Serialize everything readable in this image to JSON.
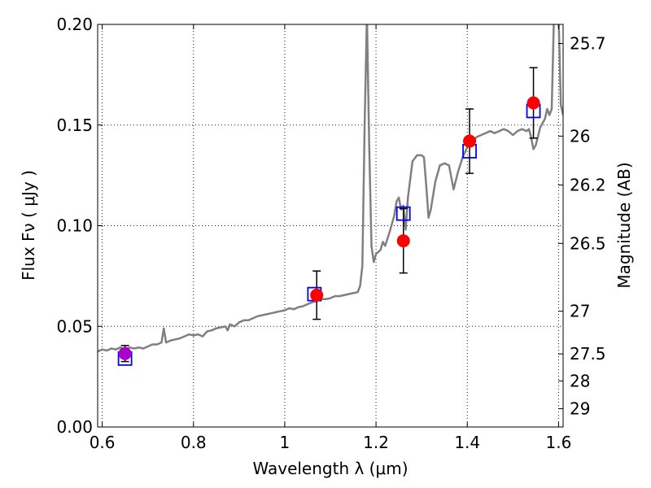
{
  "chart_data": {
    "type": "scatter",
    "xlabel": "Wavelength  λ (μm)",
    "ylabel": "Flux  Fν  ( μJy )",
    "ylabel_right": "Magnitude (AB)",
    "xlim": [
      0.59,
      1.61
    ],
    "ylim": [
      0.0,
      0.2
    ],
    "grid": true,
    "x_ticks": [
      {
        "value": 0.6,
        "label": "0.6"
      },
      {
        "value": 0.8,
        "label": "0.8"
      },
      {
        "value": 1.0,
        "label": "1"
      },
      {
        "value": 1.2,
        "label": "1.2"
      },
      {
        "value": 1.4,
        "label": "1.4"
      },
      {
        "value": 1.6,
        "label": "1.6"
      }
    ],
    "y_ticks": [
      {
        "value": 0.0,
        "label": "0.00"
      },
      {
        "value": 0.05,
        "label": "0.05"
      },
      {
        "value": 0.1,
        "label": "0.10"
      },
      {
        "value": 0.15,
        "label": "0.15"
      },
      {
        "value": 0.2,
        "label": "0.20"
      }
    ],
    "right_ticks": [
      {
        "label": "25.7",
        "flux": 0.1905
      },
      {
        "label": "26",
        "flux": 0.1445
      },
      {
        "label": "26.2",
        "flux": 0.1202
      },
      {
        "label": "26.5",
        "flux": 0.0912
      },
      {
        "label": "27",
        "flux": 0.0575
      },
      {
        "label": "27.5",
        "flux": 0.0363
      },
      {
        "label": "28",
        "flux": 0.0229
      },
      {
        "label": "29",
        "flux": 0.0091
      }
    ],
    "model_spectrum": {
      "color": "#808080",
      "points": [
        [
          0.59,
          0.0375
        ],
        [
          0.6,
          0.0385
        ],
        [
          0.61,
          0.038
        ],
        [
          0.62,
          0.039
        ],
        [
          0.63,
          0.0385
        ],
        [
          0.64,
          0.0395
        ],
        [
          0.65,
          0.0385
        ],
        [
          0.66,
          0.0395
        ],
        [
          0.67,
          0.039
        ],
        [
          0.68,
          0.0395
        ],
        [
          0.69,
          0.039
        ],
        [
          0.7,
          0.04
        ],
        [
          0.71,
          0.041
        ],
        [
          0.72,
          0.041
        ],
        [
          0.73,
          0.042
        ],
        [
          0.735,
          0.049
        ],
        [
          0.74,
          0.042
        ],
        [
          0.75,
          0.043
        ],
        [
          0.76,
          0.0435
        ],
        [
          0.77,
          0.044
        ],
        [
          0.78,
          0.045
        ],
        [
          0.79,
          0.046
        ],
        [
          0.8,
          0.0455
        ],
        [
          0.81,
          0.046
        ],
        [
          0.82,
          0.045
        ],
        [
          0.83,
          0.0475
        ],
        [
          0.84,
          0.048
        ],
        [
          0.85,
          0.049
        ],
        [
          0.86,
          0.0495
        ],
        [
          0.87,
          0.05
        ],
        [
          0.875,
          0.048
        ],
        [
          0.88,
          0.051
        ],
        [
          0.89,
          0.05
        ],
        [
          0.9,
          0.052
        ],
        [
          0.91,
          0.053
        ],
        [
          0.92,
          0.053
        ],
        [
          0.93,
          0.054
        ],
        [
          0.94,
          0.055
        ],
        [
          0.95,
          0.0555
        ],
        [
          0.96,
          0.056
        ],
        [
          0.97,
          0.0565
        ],
        [
          0.98,
          0.057
        ],
        [
          0.99,
          0.0575
        ],
        [
          1.0,
          0.058
        ],
        [
          1.01,
          0.059
        ],
        [
          1.02,
          0.0585
        ],
        [
          1.03,
          0.0595
        ],
        [
          1.04,
          0.06
        ],
        [
          1.05,
          0.061
        ],
        [
          1.06,
          0.062
        ],
        [
          1.07,
          0.0625
        ],
        [
          1.08,
          0.0635
        ],
        [
          1.09,
          0.0635
        ],
        [
          1.1,
          0.064
        ],
        [
          1.11,
          0.065
        ],
        [
          1.12,
          0.065
        ],
        [
          1.13,
          0.0655
        ],
        [
          1.14,
          0.066
        ],
        [
          1.15,
          0.0665
        ],
        [
          1.16,
          0.067
        ],
        [
          1.165,
          0.07
        ],
        [
          1.17,
          0.08
        ],
        [
          1.175,
          0.15
        ],
        [
          1.18,
          0.205
        ],
        [
          1.185,
          0.14
        ],
        [
          1.19,
          0.09
        ],
        [
          1.195,
          0.082
        ],
        [
          1.2,
          0.086
        ],
        [
          1.21,
          0.088
        ],
        [
          1.215,
          0.092
        ],
        [
          1.22,
          0.09
        ],
        [
          1.23,
          0.097
        ],
        [
          1.24,
          0.105
        ],
        [
          1.245,
          0.112
        ],
        [
          1.25,
          0.114
        ],
        [
          1.255,
          0.108
        ],
        [
          1.26,
          0.11
        ],
        [
          1.265,
          0.098
        ],
        [
          1.27,
          0.114
        ],
        [
          1.28,
          0.132
        ],
        [
          1.29,
          0.135
        ],
        [
          1.3,
          0.135
        ],
        [
          1.305,
          0.134
        ],
        [
          1.31,
          0.12
        ],
        [
          1.315,
          0.104
        ],
        [
          1.32,
          0.108
        ],
        [
          1.33,
          0.122
        ],
        [
          1.34,
          0.13
        ],
        [
          1.35,
          0.131
        ],
        [
          1.36,
          0.13
        ],
        [
          1.37,
          0.118
        ],
        [
          1.38,
          0.127
        ],
        [
          1.39,
          0.134
        ],
        [
          1.4,
          0.139
        ],
        [
          1.41,
          0.141
        ],
        [
          1.42,
          0.144
        ],
        [
          1.43,
          0.145
        ],
        [
          1.44,
          0.146
        ],
        [
          1.45,
          0.147
        ],
        [
          1.46,
          0.146
        ],
        [
          1.47,
          0.147
        ],
        [
          1.48,
          0.148
        ],
        [
          1.49,
          0.147
        ],
        [
          1.5,
          0.145
        ],
        [
          1.51,
          0.147
        ],
        [
          1.52,
          0.148
        ],
        [
          1.53,
          0.147
        ],
        [
          1.535,
          0.148
        ],
        [
          1.54,
          0.144
        ],
        [
          1.545,
          0.138
        ],
        [
          1.55,
          0.14
        ],
        [
          1.56,
          0.149
        ],
        [
          1.57,
          0.153
        ],
        [
          1.575,
          0.158
        ],
        [
          1.58,
          0.155
        ],
        [
          1.585,
          0.158
        ],
        [
          1.59,
          0.205
        ],
        [
          1.6,
          0.205
        ],
        [
          1.605,
          0.16
        ],
        [
          1.61,
          0.155
        ]
      ]
    },
    "model_photometry": {
      "marker": "open-square",
      "color": "#0000ff",
      "points": [
        {
          "x": 0.65,
          "y": 0.034
        },
        {
          "x": 1.065,
          "y": 0.066
        },
        {
          "x": 1.26,
          "y": 0.106
        },
        {
          "x": 1.405,
          "y": 0.137
        },
        {
          "x": 1.545,
          "y": 0.157
        }
      ]
    },
    "observed": {
      "points": [
        {
          "x": 0.65,
          "y": 0.0365,
          "err": 0.004,
          "color": "#aa00cc"
        },
        {
          "x": 1.07,
          "y": 0.0655,
          "err": 0.012,
          "color": "#ff0000"
        },
        {
          "x": 1.26,
          "y": 0.0925,
          "err": 0.016,
          "color": "#ff0000"
        },
        {
          "x": 1.405,
          "y": 0.142,
          "err": 0.016,
          "color": "#ff0000"
        },
        {
          "x": 1.545,
          "y": 0.161,
          "err": 0.0175,
          "color": "#ff0000"
        }
      ]
    }
  }
}
